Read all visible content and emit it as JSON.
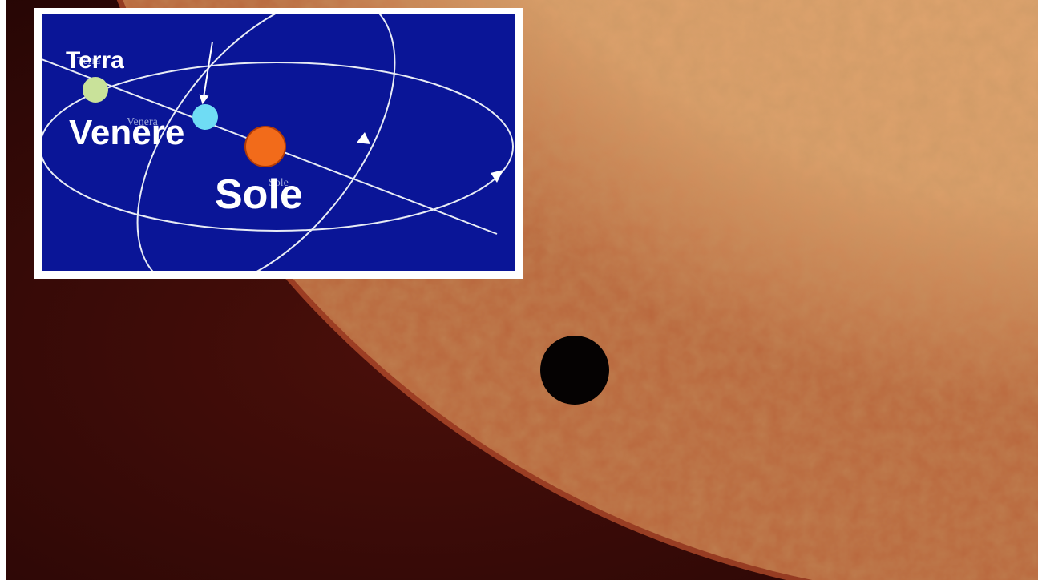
{
  "inset": {
    "labels": {
      "earth": "Terra",
      "venus": "Venere",
      "sun": "Sole"
    },
    "faint_labels": {
      "earth": "Terra",
      "venus": "Venera",
      "sun": "Sole"
    }
  }
}
